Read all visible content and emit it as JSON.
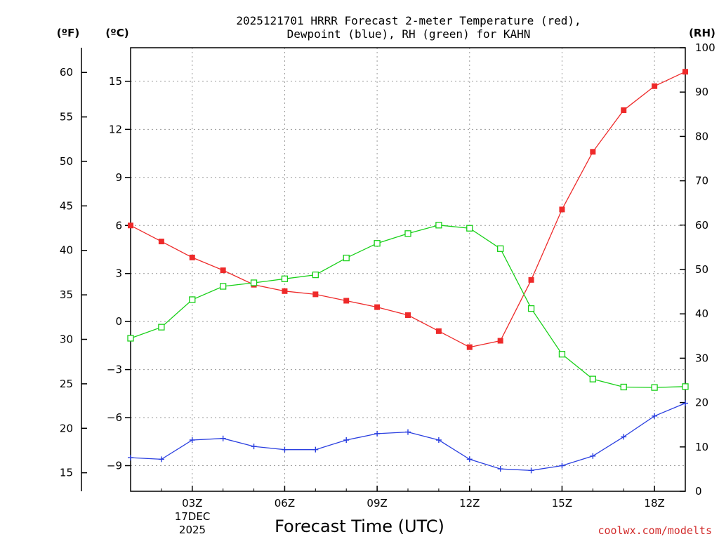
{
  "chart_data": {
    "type": "line",
    "title_line1": "2025121701 HRRR Forecast 2-meter Temperature (red),",
    "title_line2": "Dewpoint (blue), RH (green) for KAHN",
    "xlabel": "Forecast Time (UTC)",
    "credit": "coolwx.com/modelts",
    "units": {
      "fahrenheit": "(ºF)",
      "celsius": "(ºC)",
      "rh": "(RH)"
    },
    "x_range_hours": [
      1,
      19
    ],
    "x_ticks": [
      {
        "hour": 3,
        "label": "03Z"
      },
      {
        "hour": 6,
        "label": "06Z"
      },
      {
        "hour": 9,
        "label": "09Z"
      },
      {
        "hour": 12,
        "label": "12Z"
      },
      {
        "hour": 15,
        "label": "15Z"
      },
      {
        "hour": 18,
        "label": "18Z"
      }
    ],
    "date_label": [
      "17DEC",
      "2025"
    ],
    "celsius_axis": {
      "range": [
        -10.6,
        17.1
      ],
      "ticks": [
        15,
        12,
        9,
        6,
        3,
        0,
        -3,
        -6,
        -9
      ],
      "tick_labels": [
        "15",
        "12",
        "9",
        "6",
        "3",
        "0",
        "−3",
        "−6",
        "−9"
      ]
    },
    "fahrenheit_axis": {
      "ticks": [
        60,
        55,
        50,
        45,
        40,
        35,
        30,
        25,
        20,
        15
      ],
      "tick_labels": [
        "60",
        "55",
        "50",
        "45",
        "40",
        "35",
        "30",
        "25",
        "20",
        "15"
      ]
    },
    "rh_axis": {
      "range": [
        0,
        100
      ],
      "ticks": [
        100,
        90,
        80,
        70,
        60,
        50,
        40,
        30,
        20,
        10,
        0
      ],
      "tick_labels": [
        "100",
        "90",
        "80",
        "70",
        "60",
        "50",
        "40",
        "30",
        "20",
        "10",
        "0"
      ]
    },
    "x": [
      1,
      2,
      3,
      4,
      5,
      6,
      7,
      8,
      9,
      10,
      11,
      12,
      13,
      14,
      15,
      16,
      17,
      18,
      19
    ],
    "series": [
      {
        "name": "Temperature",
        "axis": "celsius",
        "color": "#ee2a2a",
        "marker": "filled-square",
        "values": [
          6.0,
          5.0,
          4.0,
          3.2,
          2.3,
          1.9,
          1.7,
          1.3,
          0.9,
          0.4,
          -0.6,
          -1.6,
          -1.2,
          2.6,
          7.0,
          10.6,
          13.2,
          14.7,
          15.6
        ]
      },
      {
        "name": "Dewpoint",
        "axis": "celsius",
        "color": "#2a3fe0",
        "marker": "plus",
        "values": [
          -8.5,
          -8.6,
          -7.4,
          -7.3,
          -7.8,
          -8.0,
          -8.0,
          -7.4,
          -7.0,
          -6.9,
          -7.4,
          -8.6,
          -9.2,
          -9.3,
          -9.0,
          -8.4,
          -7.2,
          -5.9,
          -5.1
        ]
      },
      {
        "name": "Relative Humidity",
        "axis": "rh",
        "color": "#18d018",
        "marker": "open-square",
        "values": [
          34.5,
          37.0,
          43.2,
          46.2,
          47.0,
          47.9,
          48.8,
          52.6,
          55.9,
          58.1,
          60.0,
          59.3,
          54.7,
          41.2,
          30.9,
          25.3,
          23.5,
          23.4,
          23.6
        ]
      }
    ]
  }
}
